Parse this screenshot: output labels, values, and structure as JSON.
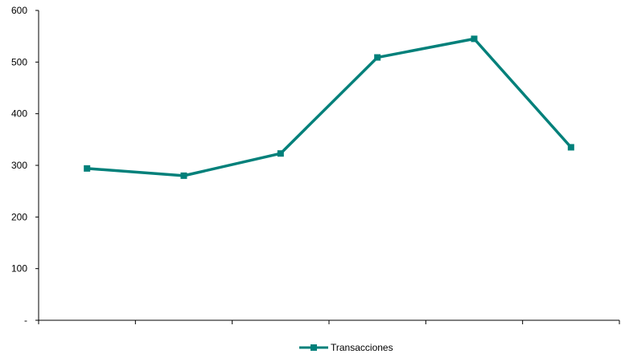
{
  "chart_data": {
    "type": "line",
    "categories": [
      "",
      "",
      "",
      "",
      "",
      ""
    ],
    "y_tick_labels": [
      "-",
      "100",
      "200",
      "300",
      "400",
      "500",
      "600"
    ],
    "ylim": [
      0,
      600
    ],
    "grid": false,
    "legend_position": "bottom",
    "series": [
      {
        "name": "Transacciones",
        "color": "#00807a",
        "marker": "square",
        "values": [
          294,
          280,
          323,
          509,
          545,
          335
        ]
      }
    ]
  }
}
